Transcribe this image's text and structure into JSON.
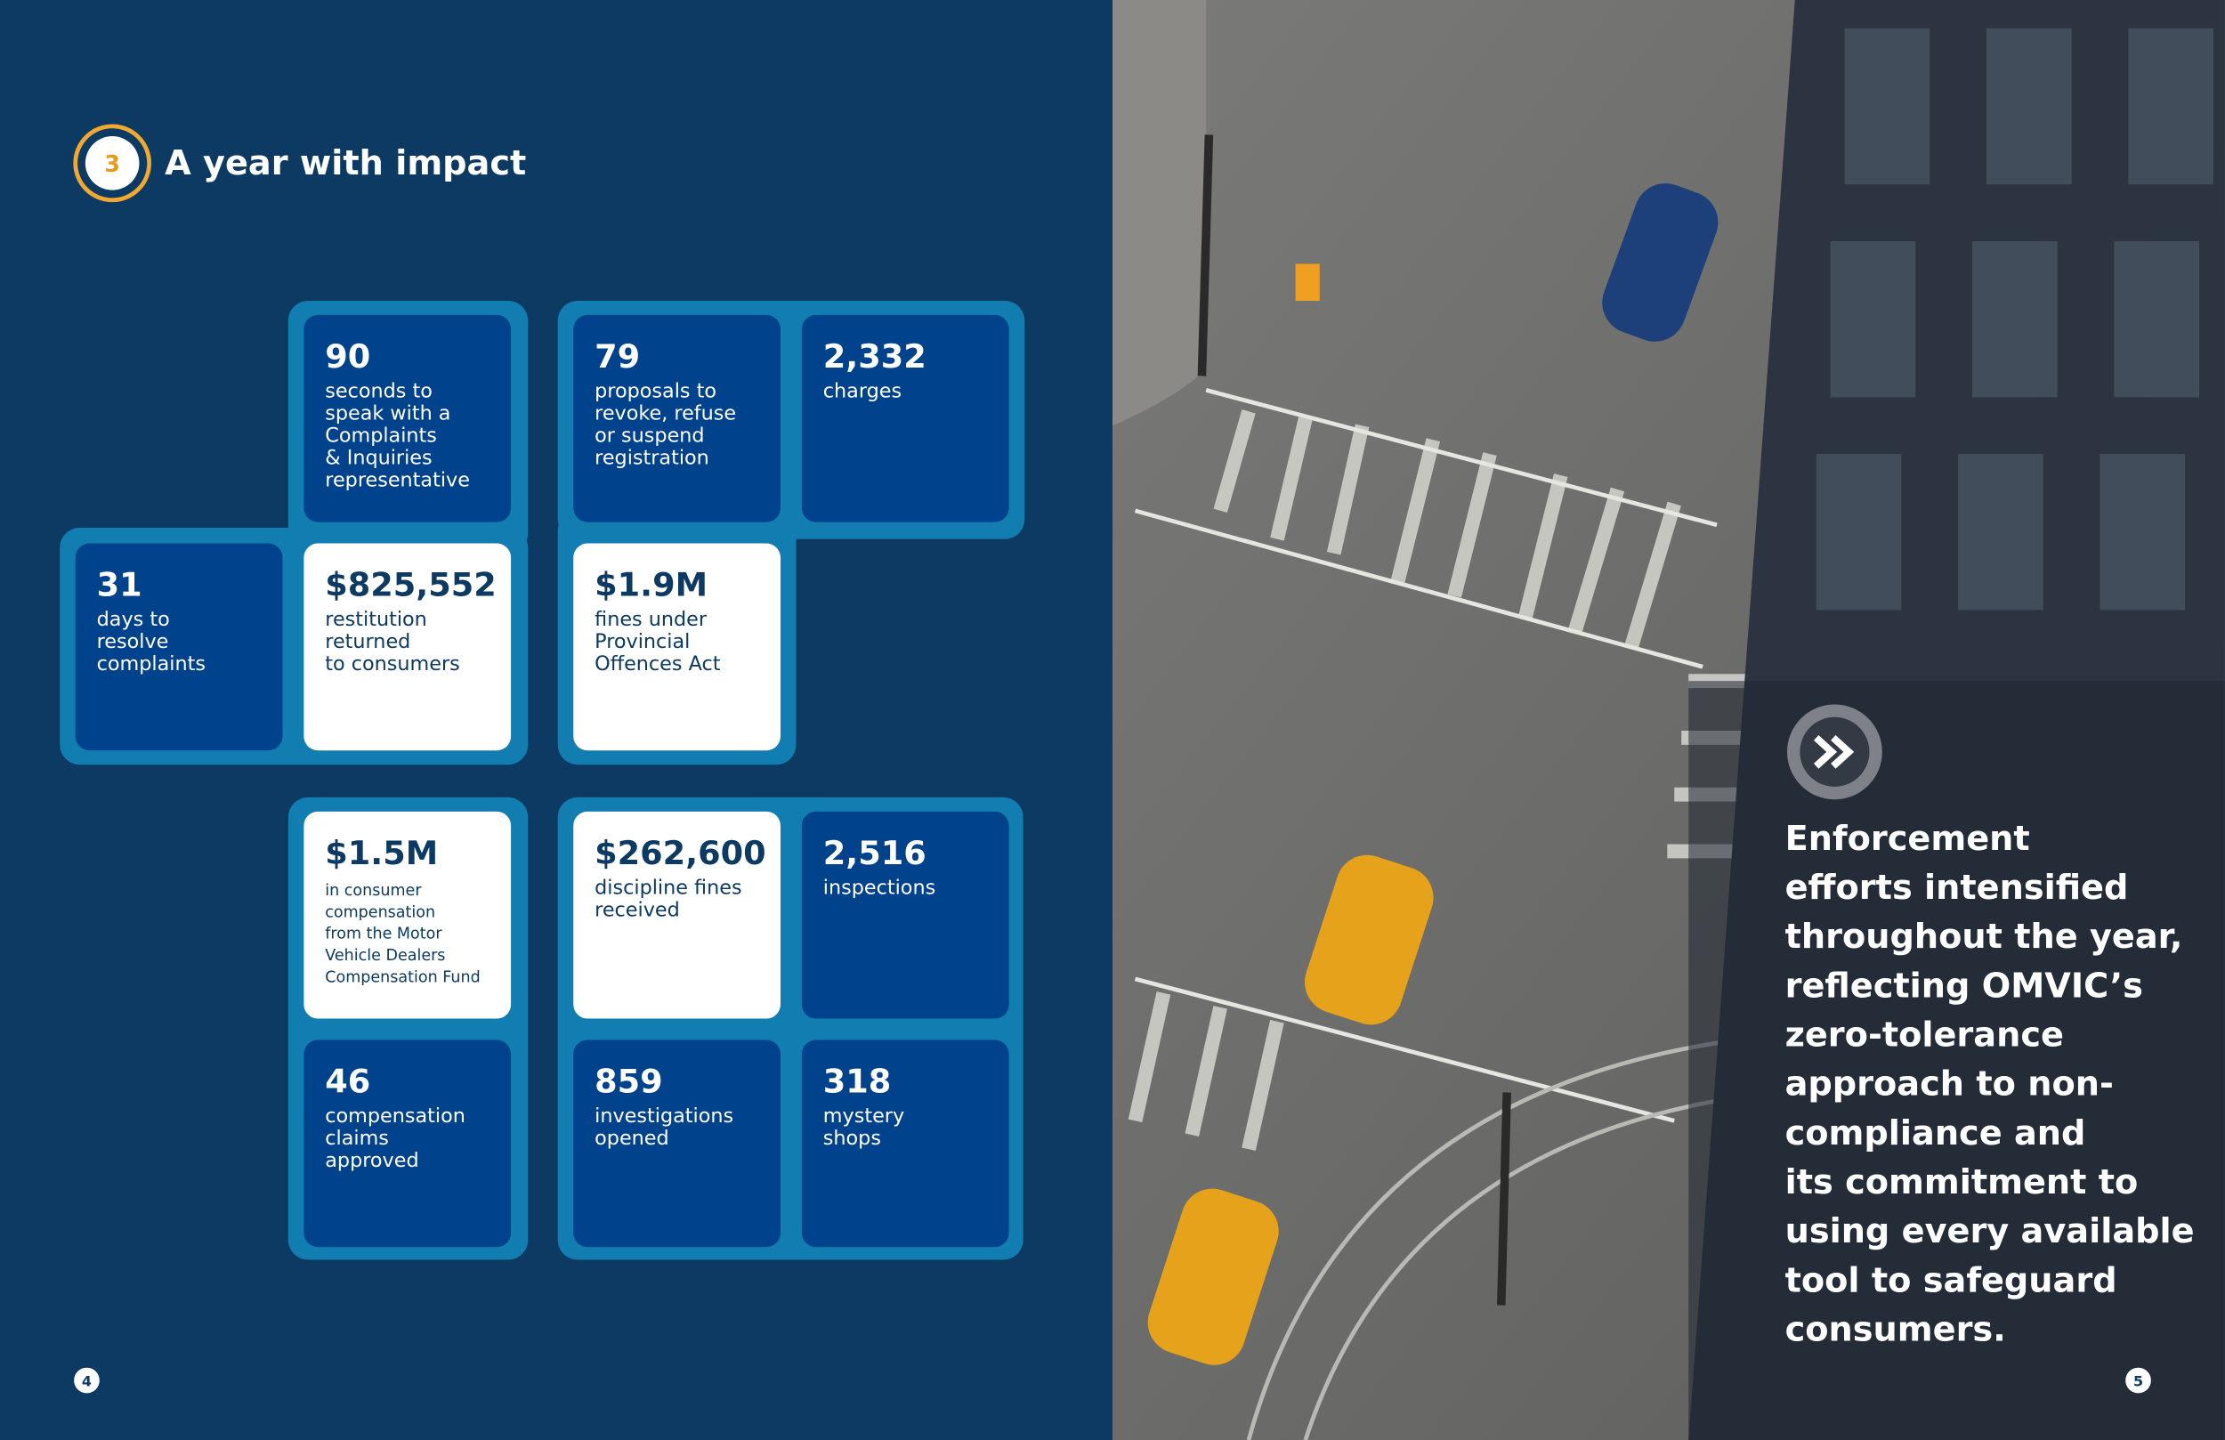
{
  "header": {
    "badge": "3",
    "title": "A year with impact"
  },
  "tiles": [
    {
      "value": "90",
      "lines": [
        "seconds to",
        "speak with a",
        "Complaints",
        "& Inquiries",
        "representative"
      ]
    },
    {
      "value": "79",
      "lines": [
        "proposals to",
        "revoke, refuse",
        "or suspend",
        "registration"
      ]
    },
    {
      "value": "2,332",
      "lines": [
        "charges"
      ]
    },
    {
      "value": "31",
      "lines": [
        "days to",
        "resolve",
        "complaints"
      ]
    },
    {
      "value": "$825,552",
      "lines": [
        "restitution",
        "returned",
        "to consumers"
      ]
    },
    {
      "value": "$1.9M",
      "lines": [
        "fines under",
        "Provincial",
        "Offences Act"
      ]
    },
    {
      "value": "$1.5M",
      "lines": [
        "in consumer",
        "compensation",
        "from the Motor",
        "Vehicle Dealers",
        "Compensation Fund"
      ]
    },
    {
      "value": "$262,600",
      "lines": [
        "discipline fines",
        "received"
      ]
    },
    {
      "value": "2,516",
      "lines": [
        "inspections"
      ]
    },
    {
      "value": "46",
      "lines": [
        "compensation",
        "claims",
        "approved"
      ]
    },
    {
      "value": "859",
      "lines": [
        "investigations",
        "opened"
      ]
    },
    {
      "value": "318",
      "lines": [
        "mystery",
        "shops"
      ]
    }
  ],
  "quote": {
    "lines": [
      "Enforcement",
      "efforts intensified",
      "throughout the year,",
      "reflecting OMVIC’s",
      "zero-tolerance",
      "approach to non-",
      "compliance and",
      "its commitment to",
      "using every available",
      "tool to safeguard",
      "consumers."
    ]
  },
  "page_numbers": [
    "4",
    "5"
  ]
}
